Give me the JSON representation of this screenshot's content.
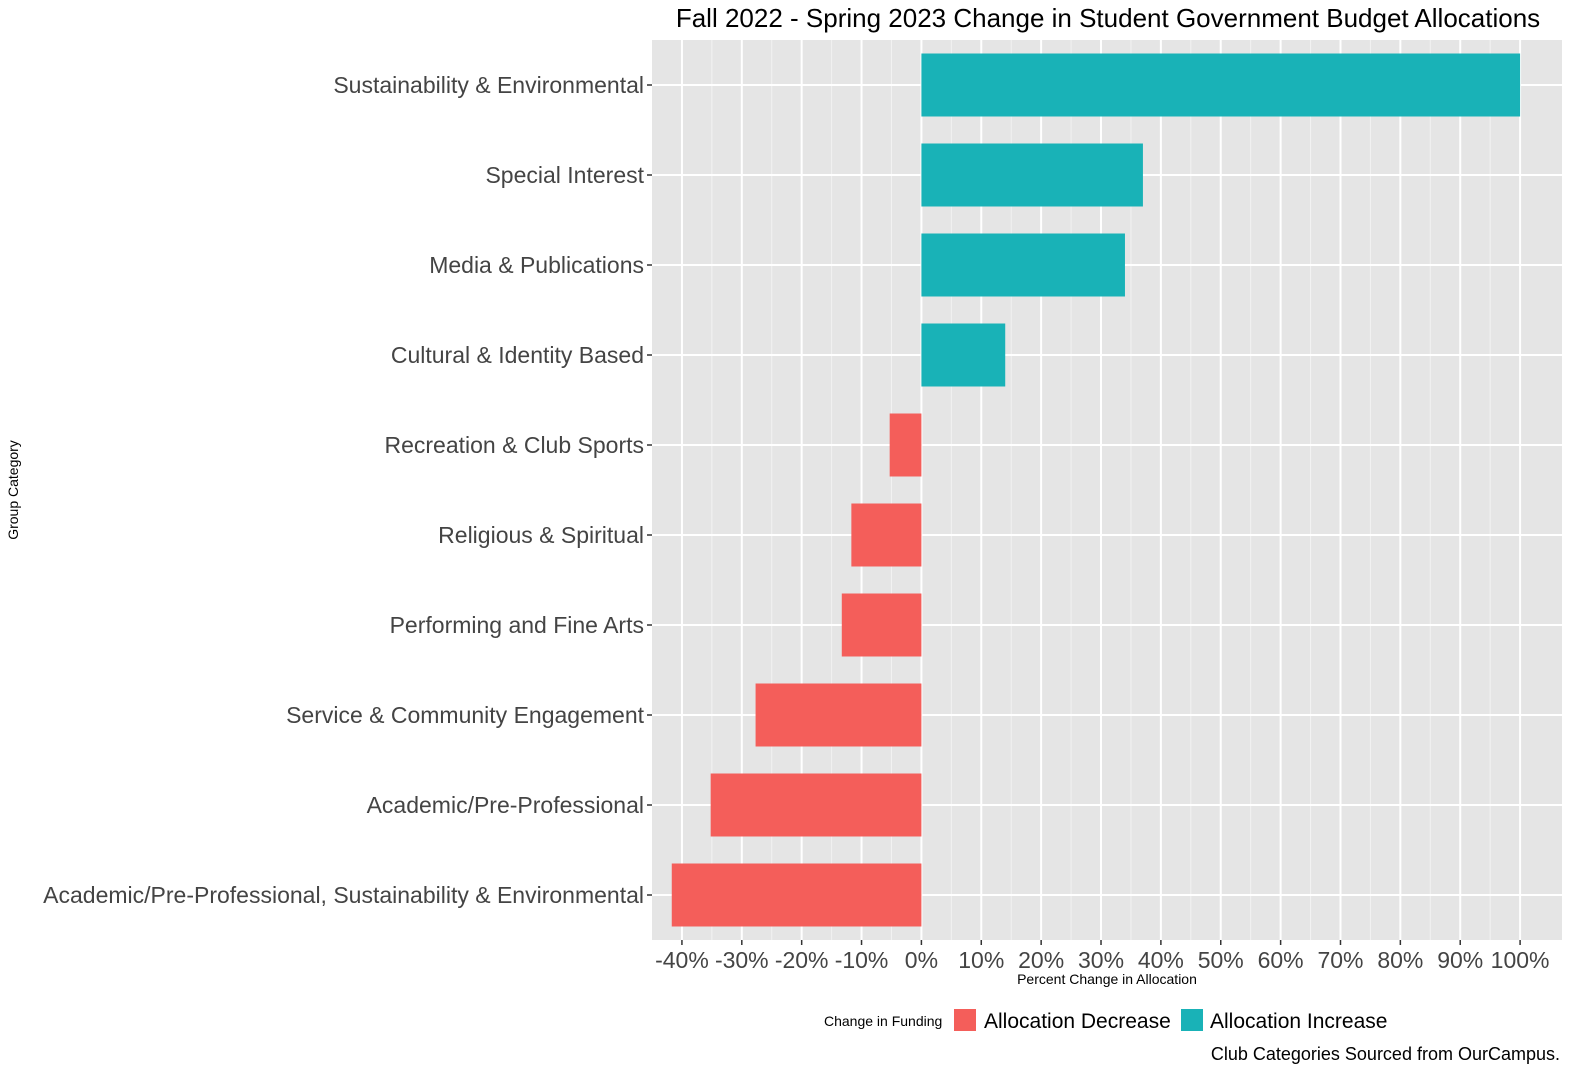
{
  "chart_data": {
    "type": "bar",
    "orientation": "horizontal",
    "title": "Fall 2022 - Spring 2023 Change in Student Government Budget Allocations",
    "xlabel": "Percent Change in Allocation",
    "ylabel": "Group Category",
    "caption": "Club Categories Sourced from OurCampus.",
    "xlim": [
      -45,
      107
    ],
    "x_ticks": [
      -40,
      -30,
      -20,
      -10,
      0,
      10,
      20,
      30,
      40,
      50,
      60,
      70,
      80,
      90,
      100
    ],
    "x_tick_labels": [
      "-40%",
      "-30%",
      "-20%",
      "-10%",
      "0%",
      "10%",
      "20%",
      "30%",
      "40%",
      "50%",
      "60%",
      "70%",
      "80%",
      "90%",
      "100%"
    ],
    "grid": true,
    "legend_position": "bottom",
    "legend": {
      "title": "Change in Funding",
      "items": [
        {
          "label": "Allocation Decrease",
          "color": "#F8766D"
        },
        {
          "label": "Allocation Increase",
          "color": "#00BFC4"
        }
      ]
    },
    "categories": [
      "Sustainability & Environmental",
      "Special Interest",
      "Media & Publications",
      "Cultural & Identity Based",
      "Recreation & Club Sports",
      "Religious & Spiritual",
      "Performing and Fine Arts",
      "Service & Community Engagement",
      "Academic/Pre-Professional",
      "Academic/Pre-Professional, Sustainability & Environmental"
    ],
    "values": [
      100,
      37,
      34,
      14,
      -5.3,
      -11.7,
      -13.3,
      -27.7,
      -35.2,
      -41.7
    ],
    "colors": {
      "decrease": "#F45E5A",
      "increase": "#19B2B7",
      "panel": "#E5E5E5",
      "grid_major": "#FFFFFF",
      "grid_minor": "#F2F2F2"
    }
  }
}
